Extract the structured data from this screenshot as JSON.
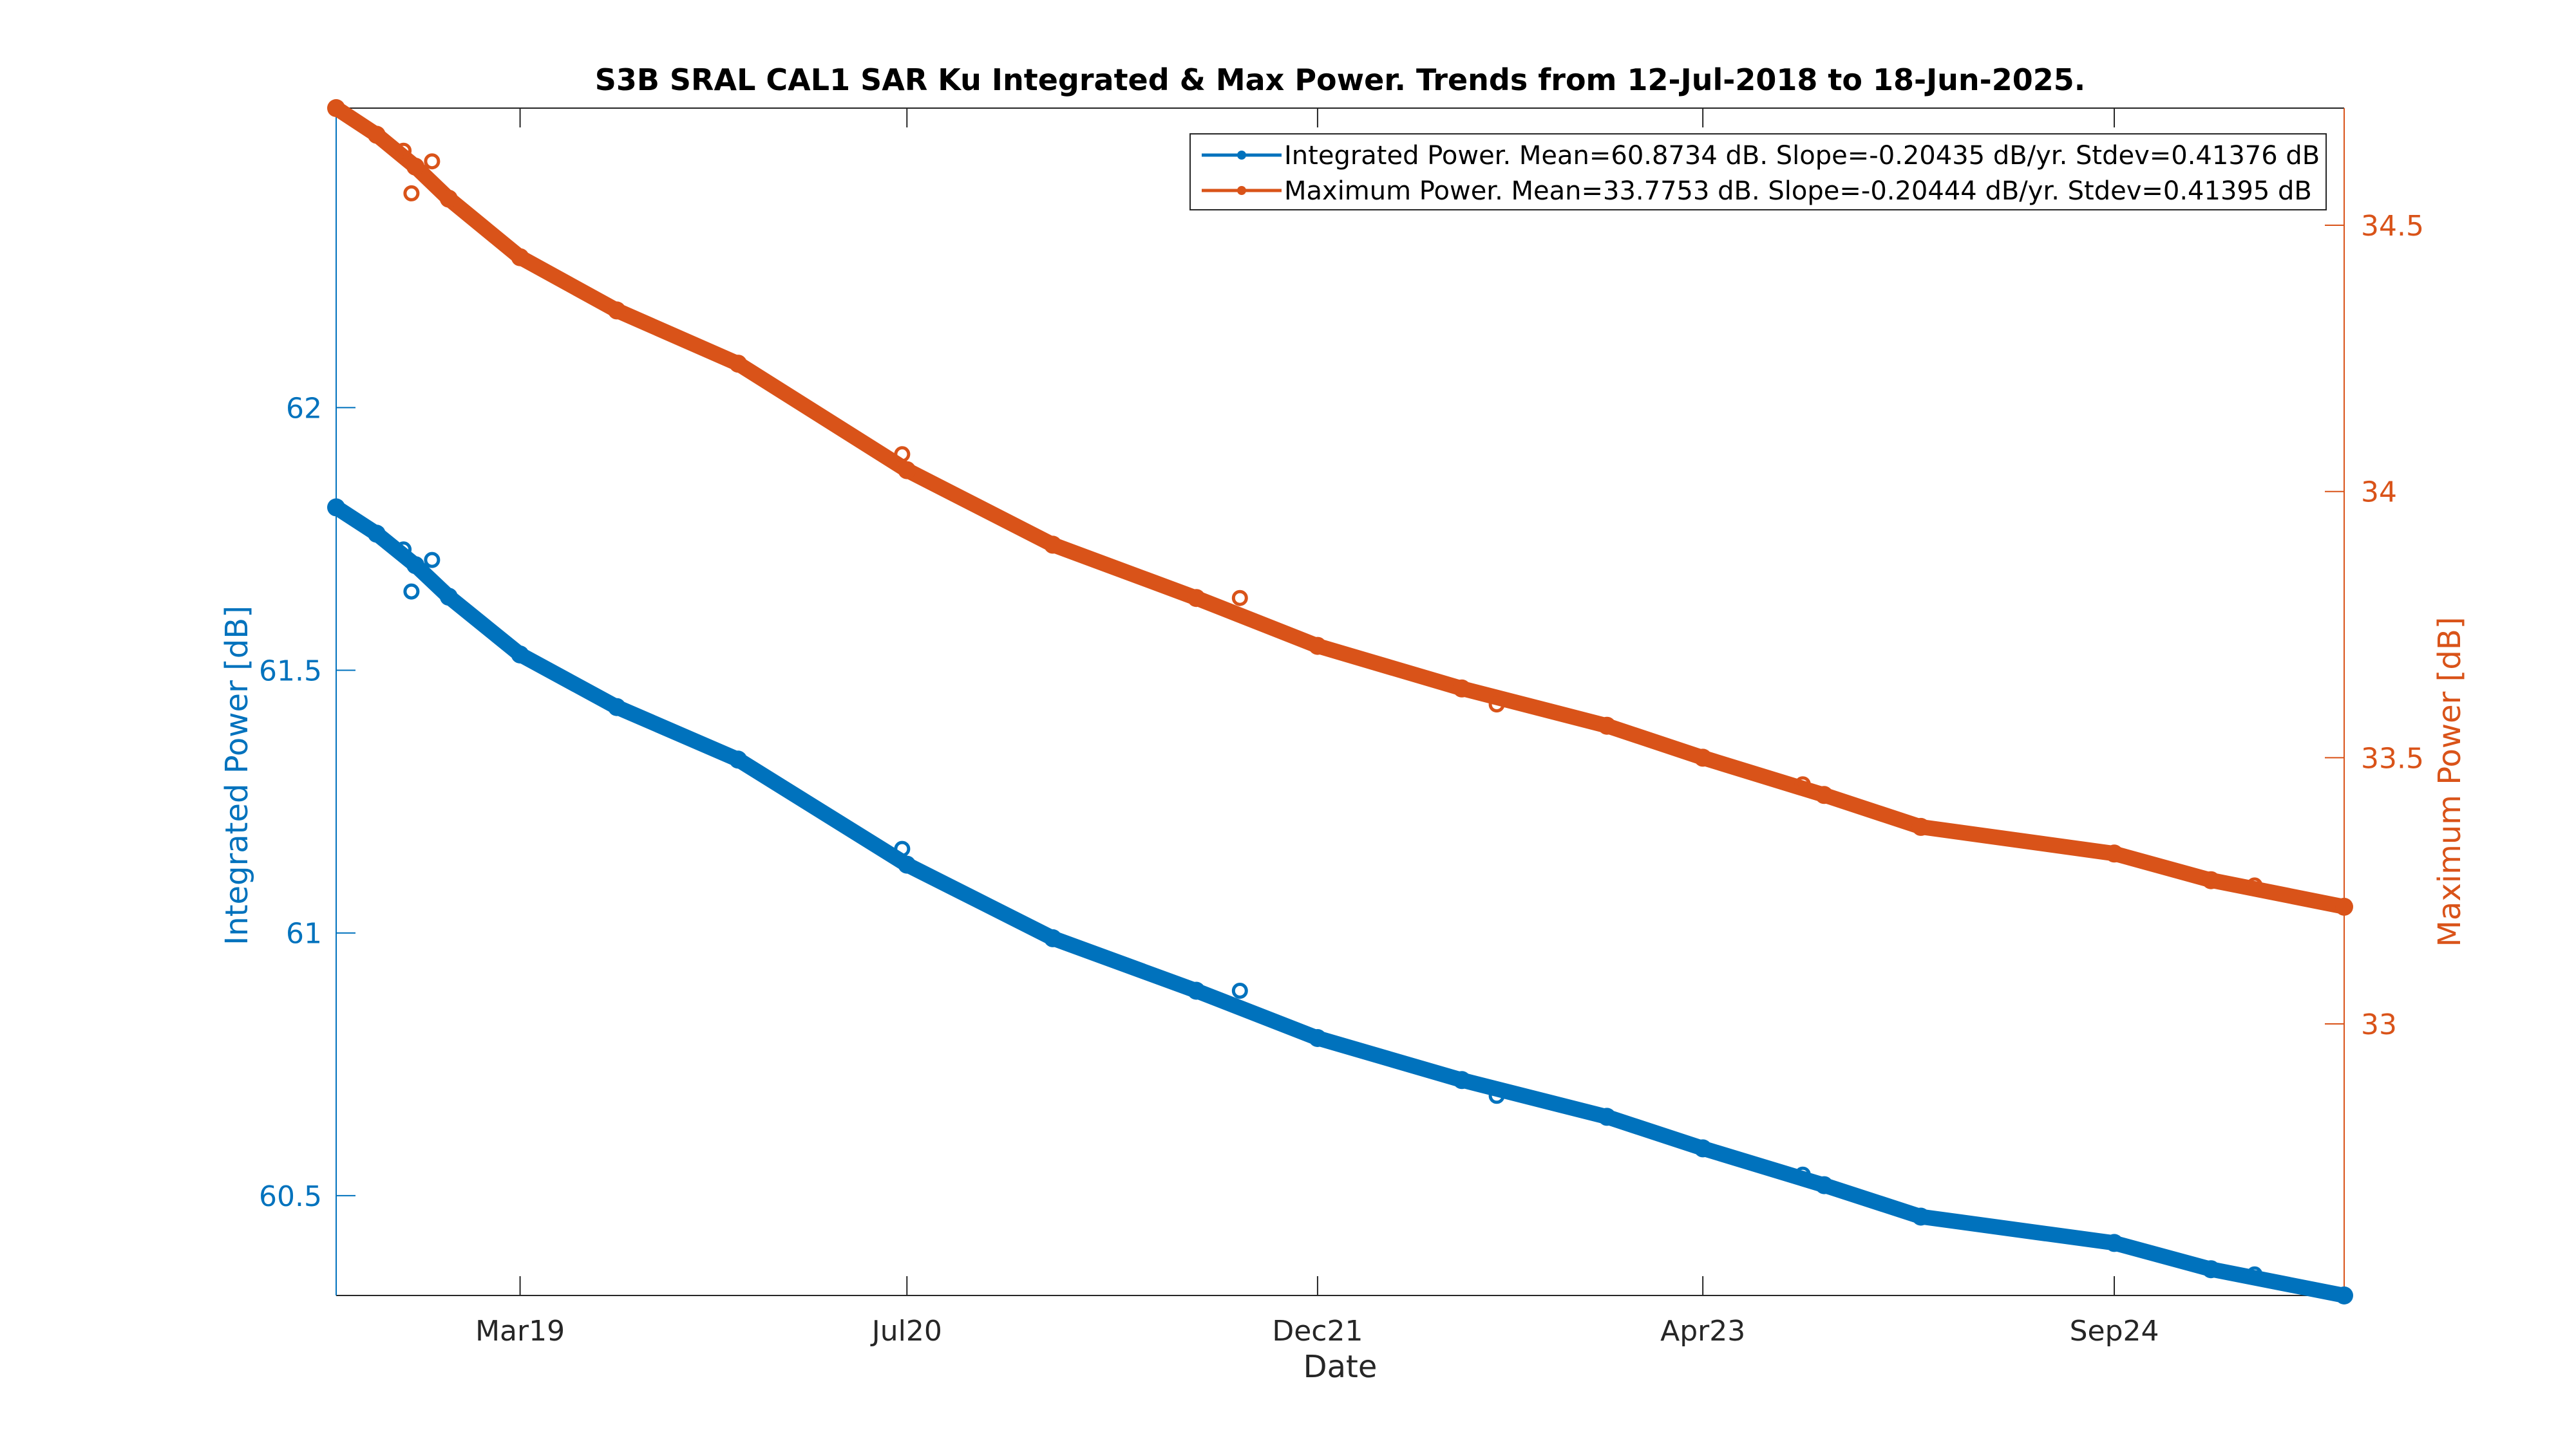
{
  "chart_data": {
    "type": "line",
    "title": "S3B SRAL CAL1 SAR Ku Integrated & Max Power. Trends from 12-Jul-2018 to 18-Jun-2025.",
    "xlabel": "Date",
    "ylabel_left": "Integrated Power [dB]",
    "ylabel_right": "Maximum Power [dB]",
    "x_ticks": [
      {
        "label": "Mar19",
        "date": "2019-03-01"
      },
      {
        "label": "Jul20",
        "date": "2020-07-01"
      },
      {
        "label": "Dec21",
        "date": "2021-12-01"
      },
      {
        "label": "Apr23",
        "date": "2023-04-01"
      },
      {
        "label": "Sep24",
        "date": "2024-09-01"
      }
    ],
    "xlim": [
      "2018-07-12",
      "2025-06-18"
    ],
    "ylim_left": [
      60.31,
      62.57
    ],
    "ylim_right": [
      32.49,
      34.72
    ],
    "yticks_left": [
      "60.5",
      "61",
      "61.5",
      "62"
    ],
    "yticks_right": [
      "33",
      "33.5",
      "34",
      "34.5"
    ],
    "legend": {
      "position": "top-right",
      "entries": [
        "Integrated Power. Mean=60.8734 dB. Slope=-0.20435 dB/yr. Stdev=0.41376 dB",
        "Maximum Power. Mean=33.7753 dB. Slope=-0.20444 dB/yr. Stdev=0.41395 dB"
      ]
    },
    "series": [
      {
        "name": "Integrated Power",
        "axis": "left",
        "color": "#0072BD",
        "points": [
          [
            "2018-07-12",
            61.81
          ],
          [
            "2018-09-01",
            61.76
          ],
          [
            "2018-10-20",
            61.7
          ],
          [
            "2018-12-01",
            61.64
          ],
          [
            "2019-03-01",
            61.53
          ],
          [
            "2019-07-01",
            61.43
          ],
          [
            "2019-12-01",
            61.33
          ],
          [
            "2020-07-01",
            61.13
          ],
          [
            "2021-01-01",
            60.99
          ],
          [
            "2021-07-01",
            60.89
          ],
          [
            "2021-12-01",
            60.8
          ],
          [
            "2022-06-01",
            60.72
          ],
          [
            "2022-12-01",
            60.65
          ],
          [
            "2023-04-01",
            60.59
          ],
          [
            "2023-09-01",
            60.52
          ],
          [
            "2024-01-01",
            60.46
          ],
          [
            "2024-09-01",
            60.41
          ],
          [
            "2025-01-01",
            60.36
          ],
          [
            "2025-06-18",
            60.31
          ]
        ],
        "outliers": [
          [
            "2018-10-05",
            61.73
          ],
          [
            "2018-10-15",
            61.65
          ],
          [
            "2018-11-10",
            61.71
          ],
          [
            "2020-06-25",
            61.16
          ],
          [
            "2021-08-25",
            60.89
          ],
          [
            "2022-07-15",
            60.69
          ],
          [
            "2023-08-05",
            60.54
          ],
          [
            "2025-02-25",
            60.35
          ]
        ]
      },
      {
        "name": "Maximum Power",
        "axis": "right",
        "color": "#D95319",
        "points": [
          [
            "2018-07-12",
            34.72
          ],
          [
            "2018-09-01",
            34.67
          ],
          [
            "2018-10-20",
            34.61
          ],
          [
            "2018-12-01",
            34.55
          ],
          [
            "2019-03-01",
            34.44
          ],
          [
            "2019-07-01",
            34.34
          ],
          [
            "2019-12-01",
            34.24
          ],
          [
            "2020-07-01",
            34.04
          ],
          [
            "2021-01-01",
            33.9
          ],
          [
            "2021-07-01",
            33.8
          ],
          [
            "2021-12-01",
            33.71
          ],
          [
            "2022-06-01",
            33.63
          ],
          [
            "2022-12-01",
            33.56
          ],
          [
            "2023-04-01",
            33.5
          ],
          [
            "2023-09-01",
            33.43
          ],
          [
            "2024-01-01",
            33.37
          ],
          [
            "2024-09-01",
            33.32
          ],
          [
            "2025-01-01",
            33.27
          ],
          [
            "2025-06-18",
            33.22
          ]
        ],
        "outliers": [
          [
            "2018-10-05",
            34.64
          ],
          [
            "2018-10-15",
            34.56
          ],
          [
            "2018-11-10",
            34.62
          ],
          [
            "2020-06-25",
            34.07
          ],
          [
            "2021-08-25",
            33.8
          ],
          [
            "2022-07-15",
            33.6
          ],
          [
            "2023-08-05",
            33.45
          ],
          [
            "2025-02-25",
            33.26
          ]
        ]
      }
    ]
  }
}
